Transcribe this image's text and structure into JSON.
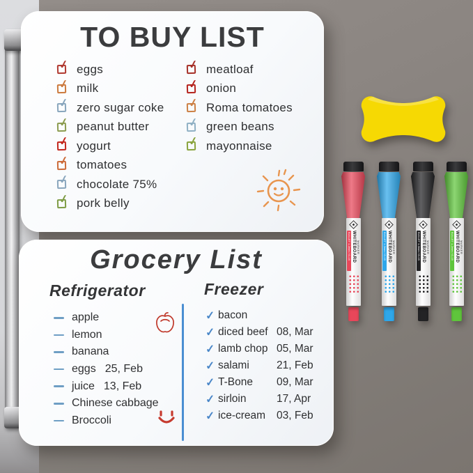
{
  "scene": {
    "background_color": "#8b8581",
    "fridge_panel_color": "#d5d6d9"
  },
  "top_board": {
    "title": "TO BUY LIST",
    "columns": [
      {
        "items": [
          {
            "label": "eggs",
            "check_color": "#b13a31"
          },
          {
            "label": "milk",
            "check_color": "#cc7a3e"
          },
          {
            "label": "zero sugar coke",
            "check_color": "#89a6bd"
          },
          {
            "label": "peanut butter",
            "check_color": "#8c9c50"
          },
          {
            "label": "yogurt",
            "check_color": "#c3271d"
          },
          {
            "label": "tomatoes",
            "check_color": "#cc6b39"
          },
          {
            "label": "chocolate 75%",
            "check_color": "#89a6bd"
          },
          {
            "label": "pork belly",
            "check_color": "#7e9c45"
          }
        ]
      },
      {
        "items": [
          {
            "label": "meatloaf",
            "check_color": "#a63028"
          },
          {
            "label": "onion",
            "check_color": "#b5231d"
          },
          {
            "label": "Roma tomatoes",
            "check_color": "#cc8045"
          },
          {
            "label": "green beans",
            "check_color": "#8fb0c4"
          },
          {
            "label": "mayonnaise",
            "check_color": "#89a33c"
          }
        ]
      }
    ],
    "sun_doodle_color": "#e8954f"
  },
  "bottom_board": {
    "title": "Grocery List",
    "divider_color": "#4a8ed2",
    "bullet_color": "#6e9ec4",
    "check_color": "#4a87c8",
    "apple_doodle_color": "#c0392b",
    "smiley_doodle_color": "#c63b2f",
    "sections": [
      {
        "heading": "Refrigerator",
        "items": [
          {
            "label": "apple",
            "date": ""
          },
          {
            "label": "lemon",
            "date": ""
          },
          {
            "label": "banana",
            "date": ""
          },
          {
            "label": "eggs",
            "date": "25, Feb"
          },
          {
            "label": "juice",
            "date": "13,  Feb"
          },
          {
            "label": "Chinese cabbage",
            "date": ""
          },
          {
            "label": "Broccoli",
            "date": ""
          }
        ]
      },
      {
        "heading": "Freezer",
        "items": [
          {
            "label": "bacon",
            "date": ""
          },
          {
            "label": "diced beef",
            "date": "08, Mar"
          },
          {
            "label": "lamb chop",
            "date": "05, Mar"
          },
          {
            "label": "salami",
            "date": "21, Feb"
          },
          {
            "label": "T-Bone",
            "date": "09, Mar"
          },
          {
            "label": "sirloin",
            "date": "17, Apr"
          },
          {
            "label": "ice-cream",
            "date": "03, Feb"
          }
        ]
      }
    ]
  },
  "eraser": {
    "color": "#f6d903"
  },
  "markers": {
    "label_primary": "WHITEBOARD",
    "label_secondary": "MARKER",
    "label_spec": "BULLET 1-2mm / G-19",
    "items": [
      {
        "name": "red",
        "color": "#e8475a"
      },
      {
        "name": "blue",
        "color": "#2fa7ea"
      },
      {
        "name": "black",
        "color": "#232325"
      },
      {
        "name": "green",
        "color": "#5fc53c"
      }
    ]
  }
}
